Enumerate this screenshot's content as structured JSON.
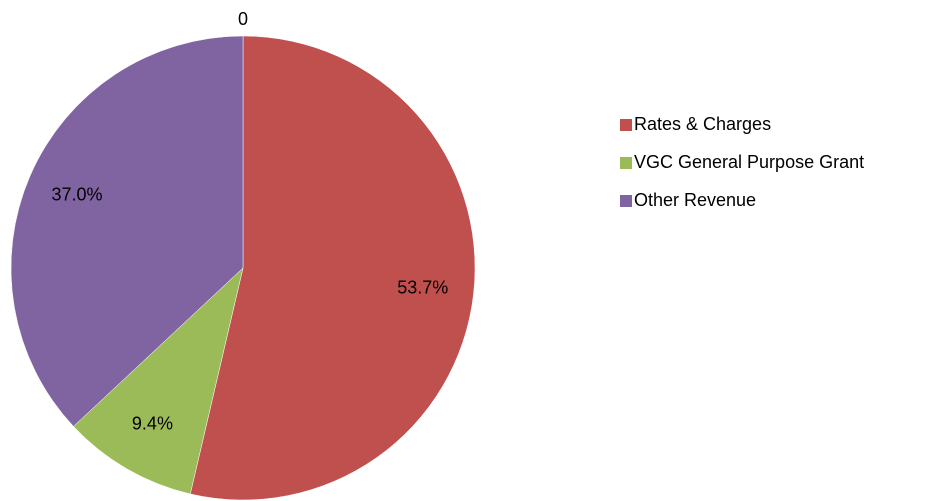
{
  "chart_data": {
    "type": "pie",
    "title": "0",
    "categories": [
      "Rates & Charges",
      "VGC General Purpose Grant",
      "Other Revenue"
    ],
    "values": [
      53.7,
      9.4,
      37.0
    ],
    "value_labels": [
      "53.7%",
      "9.4%",
      "37.0%"
    ],
    "colors": [
      "#c0504d",
      "#9bbb59",
      "#8064a2"
    ],
    "legend": "right"
  }
}
